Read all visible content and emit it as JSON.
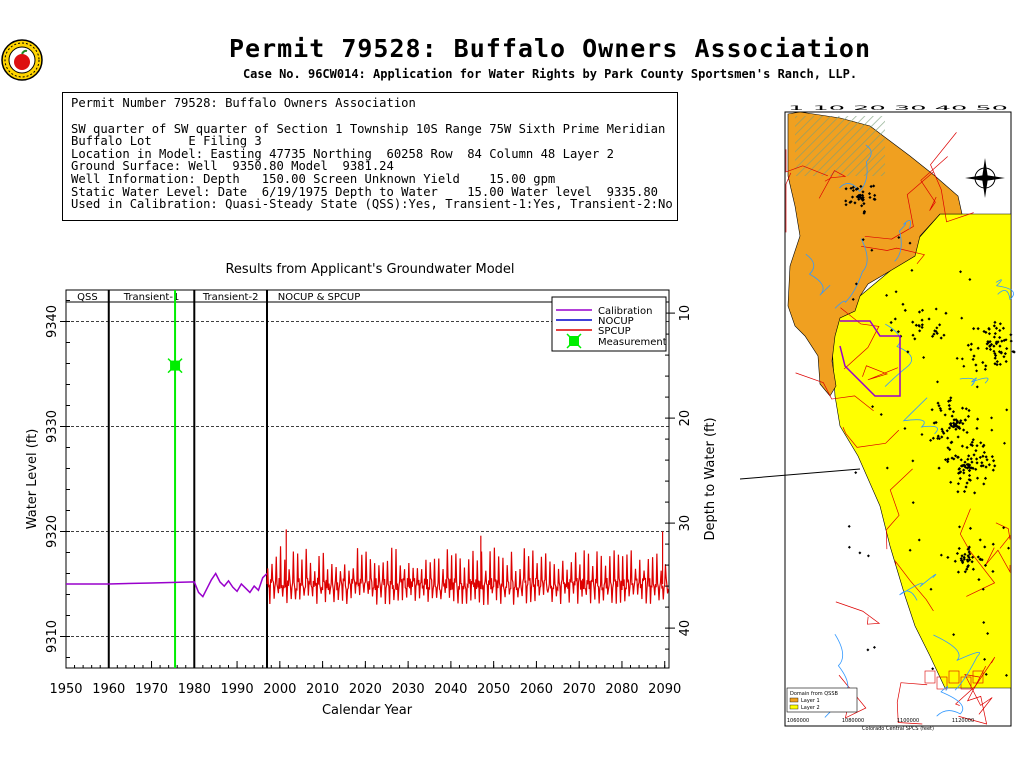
{
  "header": {
    "title": "Permit 79528:  Buffalo Owners Association",
    "subtitle": "Case No. 96CW014: Application for Water Rights by Park County Sportsmen's Ranch, LLP."
  },
  "info": {
    "heading": "Permit Number 79528: Buffalo Owners Association",
    "lines": [
      "SW quarter of SW quarter of Section 1 Township 10S Range 75W Sixth Prime Meridian",
      "Buffalo Lot     E Filing 3",
      "Location in Model: Easting 47735 Northing  60258 Row  84 Column 48 Layer 2",
      "Ground Surface: Well  9350.80 Model  9381.24",
      "Well Information: Depth   150.00 Screen Unknown Yield    15.00 gpm",
      "Static Water Level: Date  6/19/1975 Depth to Water    15.00 Water level  9335.80",
      "Used in Calibration: Quasi-Steady State (QSS):Yes, Transient-1:Yes, Transient-2:No"
    ]
  },
  "chart_data": {
    "type": "line",
    "title": "Results from Applicant's Groundwater Model",
    "xlabel": "Calendar Year",
    "ylabel": "Water Level (ft)",
    "y2label": "Depth to Water (ft)",
    "xlim": [
      1950,
      2091
    ],
    "ylim": [
      9307,
      9343
    ],
    "y2lim": [
      43.8,
      7.8
    ],
    "x_ticks": [
      1950,
      1960,
      1970,
      1980,
      1990,
      2000,
      2010,
      2020,
      2030,
      2040,
      2050,
      2060,
      2070,
      2080,
      2090
    ],
    "y_ticks": [
      9310,
      9320,
      9330,
      9340
    ],
    "y2_ticks": [
      10,
      20,
      30,
      40
    ],
    "grid": "dashed horizontal",
    "legend_position": "top-right",
    "periods": [
      {
        "label": "QSS",
        "start": 1950,
        "end": 1960
      },
      {
        "label": "Transient-1",
        "start": 1960,
        "end": 1980
      },
      {
        "label": "Transient-2",
        "start": 1980,
        "end": 1997
      },
      {
        "label": "NOCUP  &  SPCUP",
        "start": 1997,
        "end": 2091
      }
    ],
    "series": [
      {
        "name": "Calibration",
        "color": "#9900cc",
        "x": [
          1950,
          1960,
          1970,
          1980,
          1981,
          1982,
          1983,
          1984,
          1985,
          1986,
          1987,
          1988,
          1989,
          1990,
          1991,
          1992,
          1993,
          1994,
          1995,
          1996,
          1997
        ],
        "y": [
          9315.0,
          9315.0,
          9315.1,
          9315.2,
          9314.2,
          9313.8,
          9314.6,
          9315.4,
          9316.0,
          9315.2,
          9314.8,
          9315.3,
          9314.7,
          9314.3,
          9315.0,
          9314.6,
          9314.2,
          9314.8,
          9314.4,
          9315.6,
          9316.0
        ]
      },
      {
        "name": "NOCUP",
        "color": "#0000cc",
        "x": [],
        "y": []
      },
      {
        "name": "SPCUP",
        "color": "#dd0000",
        "x": [],
        "y": [],
        "pattern": {
          "start": 1997,
          "end": 2091,
          "base": 9315.0,
          "min": 9313.0,
          "max": 9320.2
        }
      },
      {
        "name": "Measurement",
        "color": "#00ee00",
        "x": [
          1975.5
        ],
        "y": [
          9335.8
        ]
      }
    ]
  },
  "map": {
    "scale_top": "1 10 20 30 40 50",
    "legend_title": "Domain from QSSB",
    "legend_layer1": "Layer 1",
    "legend_layer2": "Layer 2",
    "xaxis_label": "Colorado Central SPCS (feet)",
    "xaxis_ticks": [
      "1060000",
      "1080000",
      "1100000",
      "1120000"
    ]
  },
  "colors": {
    "orange": "#f0a020",
    "yellow": "#ffff00",
    "river": "#3399ff",
    "road": "#dd0000",
    "boundary": "#9900cc"
  }
}
